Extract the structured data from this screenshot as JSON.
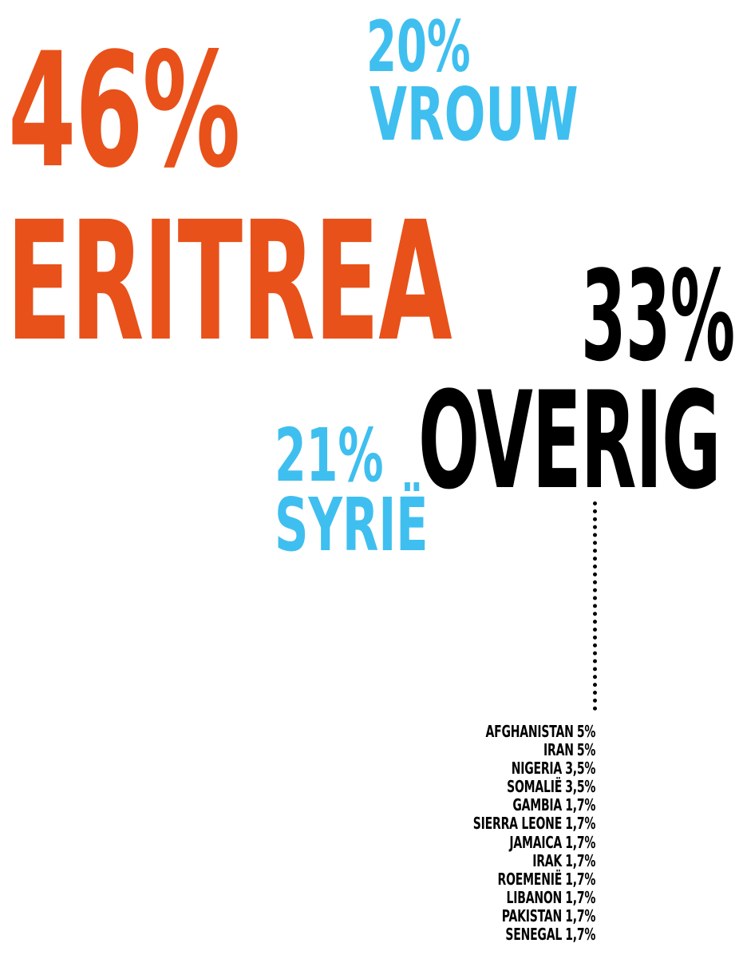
{
  "colors": {
    "orange": "#e8511a",
    "blue": "#3fbfef",
    "black": "#000000"
  },
  "chart_data": {
    "type": "table",
    "highlights": [
      {
        "value": "46%",
        "label": "ERITREA",
        "color": "#e8511a"
      },
      {
        "value": "20%",
        "label": "VROUW",
        "color": "#3fbfef"
      },
      {
        "value": "33%",
        "label": "OVERIG",
        "color": "#000000"
      },
      {
        "value": "21%",
        "label": "SYRIË",
        "color": "#3fbfef"
      }
    ],
    "breakdown": [
      {
        "country": "AFGHANISTAN",
        "value": "5%"
      },
      {
        "country": "IRAN",
        "value": "5%"
      },
      {
        "country": "NIGERIA",
        "value": "3,5%"
      },
      {
        "country": "SOMALIË",
        "value": "3,5%"
      },
      {
        "country": "GAMBIA",
        "value": "1,7%"
      },
      {
        "country": "SIERRA LEONE",
        "value": "1,7%"
      },
      {
        "country": "JAMAICA",
        "value": "1,7%"
      },
      {
        "country": "IRAK",
        "value": "1,7%"
      },
      {
        "country": "ROEMENIË",
        "value": "1,7%"
      },
      {
        "country": "LIBANON",
        "value": "1,7%"
      },
      {
        "country": "PAKISTAN",
        "value": "1,7%"
      },
      {
        "country": "SENEGAL",
        "value": "1,7%"
      }
    ]
  }
}
